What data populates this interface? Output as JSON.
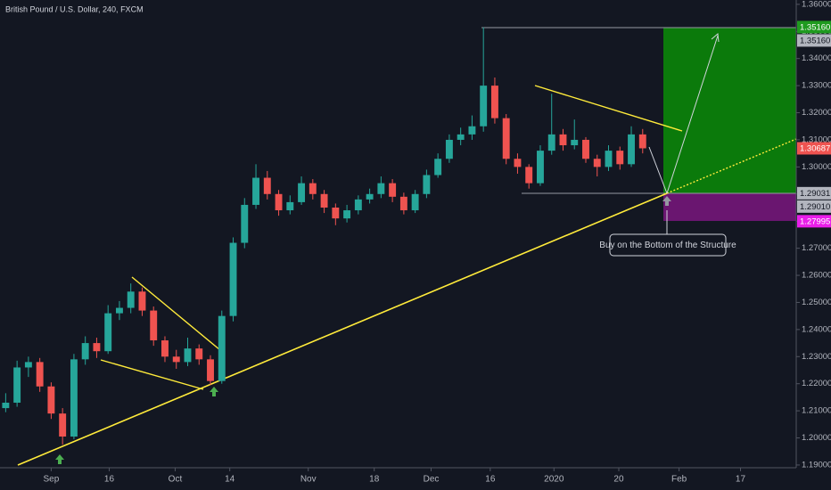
{
  "chart_data": {
    "type": "candlestick",
    "title": "British Pound / U.S. Dollar, 240, FXCM",
    "annotation": "Buy on the Bottom of the Structure",
    "up_color": "#26a69a",
    "down_color": "#ef5350",
    "open": [
      1.211,
      1.213,
      1.226,
      1.228,
      1.219,
      1.209,
      1.2005,
      1.229,
      1.235,
      1.232,
      1.246,
      1.248,
      1.254,
      1.247,
      1.236,
      1.23,
      1.228,
      1.233,
      1.229,
      1.221,
      1.245,
      1.272,
      1.286,
      1.296,
      1.29,
      1.284,
      1.287,
      1.294,
      1.29,
      1.285,
      1.281,
      1.284,
      1.288,
      1.29,
      1.294,
      1.289,
      1.284,
      1.29,
      1.297,
      1.303,
      1.31,
      1.312,
      1.315,
      1.33,
      1.318,
      1.303,
      1.3,
      1.294,
      1.306,
      1.312,
      1.308,
      1.31,
      1.303,
      1.3,
      1.306,
      1.301,
      1.312
    ],
    "high": [
      1.2165,
      1.2285,
      1.23,
      1.2295,
      1.2205,
      1.211,
      1.231,
      1.2375,
      1.237,
      1.249,
      1.2505,
      1.257,
      1.2555,
      1.2485,
      1.2375,
      1.2325,
      1.237,
      1.2345,
      1.2305,
      1.247,
      1.274,
      1.2885,
      1.301,
      1.2985,
      1.2915,
      1.2895,
      1.2965,
      1.2955,
      1.2915,
      1.2865,
      1.286,
      1.2895,
      1.292,
      1.2965,
      1.2955,
      1.2905,
      1.2915,
      1.299,
      1.305,
      1.312,
      1.3145,
      1.319,
      1.3515,
      1.333,
      1.3195,
      1.305,
      1.301,
      1.308,
      1.327,
      1.314,
      1.3175,
      1.311,
      1.3045,
      1.308,
      1.3075,
      1.315,
      1.314
    ],
    "low": [
      1.2095,
      1.2115,
      1.2225,
      1.217,
      1.207,
      1.1975,
      1.1995,
      1.227,
      1.2295,
      1.231,
      1.2435,
      1.246,
      1.245,
      1.234,
      1.228,
      1.2255,
      1.2265,
      1.227,
      1.2195,
      1.22,
      1.243,
      1.27,
      1.2845,
      1.288,
      1.282,
      1.2825,
      1.286,
      1.288,
      1.283,
      1.2785,
      1.2795,
      1.2825,
      1.2865,
      1.2885,
      1.287,
      1.2825,
      1.283,
      1.2885,
      1.296,
      1.3015,
      1.308,
      1.31,
      1.313,
      1.316,
      1.301,
      1.2975,
      1.292,
      1.293,
      1.3045,
      1.306,
      1.3065,
      1.3015,
      1.2965,
      1.2985,
      1.299,
      1.3,
      1.305
    ],
    "close": [
      1.213,
      1.226,
      1.228,
      1.219,
      1.209,
      1.2005,
      1.229,
      1.235,
      1.232,
      1.246,
      1.248,
      1.254,
      1.247,
      1.236,
      1.23,
      1.228,
      1.233,
      1.229,
      1.221,
      1.245,
      1.272,
      1.286,
      1.296,
      1.29,
      1.284,
      1.287,
      1.294,
      1.29,
      1.285,
      1.281,
      1.284,
      1.288,
      1.29,
      1.294,
      1.289,
      1.284,
      1.29,
      1.297,
      1.303,
      1.31,
      1.312,
      1.315,
      1.33,
      1.318,
      1.303,
      1.3,
      1.294,
      1.306,
      1.312,
      1.308,
      1.31,
      1.303,
      1.3,
      1.306,
      1.301,
      1.312,
      1.30687
    ],
    "xlim": [
      -0.5,
      69.5
    ],
    "xticks": [
      {
        "value": 4.0,
        "label": "Sep"
      },
      {
        "value": 9.1,
        "label": "16"
      },
      {
        "value": 14.9,
        "label": "Oct"
      },
      {
        "value": 19.7,
        "label": "14"
      },
      {
        "value": 26.6,
        "label": "Nov"
      },
      {
        "value": 32.4,
        "label": "18"
      },
      {
        "value": 37.4,
        "label": "Dec"
      },
      {
        "value": 42.6,
        "label": "16"
      },
      {
        "value": 48.2,
        "label": "2020"
      },
      {
        "value": 53.9,
        "label": "20"
      },
      {
        "value": 59.2,
        "label": "Feb"
      },
      {
        "value": 64.6,
        "label": "17"
      }
    ],
    "ylim": [
      1.189,
      1.3616
    ],
    "yticks": [
      {
        "value": 1.19,
        "label": "1.19000"
      },
      {
        "value": 1.2,
        "label": "1.20000"
      },
      {
        "value": 1.21,
        "label": "1.21000"
      },
      {
        "value": 1.22,
        "label": "1.22000"
      },
      {
        "value": 1.23,
        "label": "1.23000"
      },
      {
        "value": 1.24,
        "label": "1.24000"
      },
      {
        "value": 1.25,
        "label": "1.25000"
      },
      {
        "value": 1.26,
        "label": "1.26000"
      },
      {
        "value": 1.27,
        "label": "1.27000"
      },
      {
        "value": 1.28,
        "label": "1.28000"
      },
      {
        "value": 1.29,
        "label": "1.29000"
      },
      {
        "value": 1.3,
        "label": "1.30000"
      },
      {
        "value": 1.31,
        "label": "1.31000"
      },
      {
        "value": 1.32,
        "label": "1.32000"
      },
      {
        "value": 1.33,
        "label": "1.33000"
      },
      {
        "value": 1.34,
        "label": "1.34000"
      },
      {
        "value": 1.35,
        "label": "1.35000"
      },
      {
        "value": 1.36,
        "label": "1.36000"
      }
    ],
    "grid": false,
    "price_tags": [
      {
        "value": 1.3516,
        "label": "1.35160",
        "color": "#1f9a1f",
        "text_color": "#ffffff"
      },
      {
        "value": 1.3516,
        "label": "1.35160",
        "color": "#b2b5be",
        "text_color": "#131722"
      },
      {
        "value": 1.30687,
        "label": "1.30687",
        "color": "#ef5350",
        "text_color": "#ffffff"
      },
      {
        "value": 1.29031,
        "label": "1.29031",
        "color": "#b2b5be",
        "text_color": "#131722"
      },
      {
        "value": 1.2901,
        "label": "1.29010",
        "color": "#b2b5be",
        "text_color": "#131722"
      },
      {
        "value": 1.27995,
        "label": "1.27995",
        "color": "#e91ee9",
        "text_color": "#ffffff"
      }
    ]
  }
}
